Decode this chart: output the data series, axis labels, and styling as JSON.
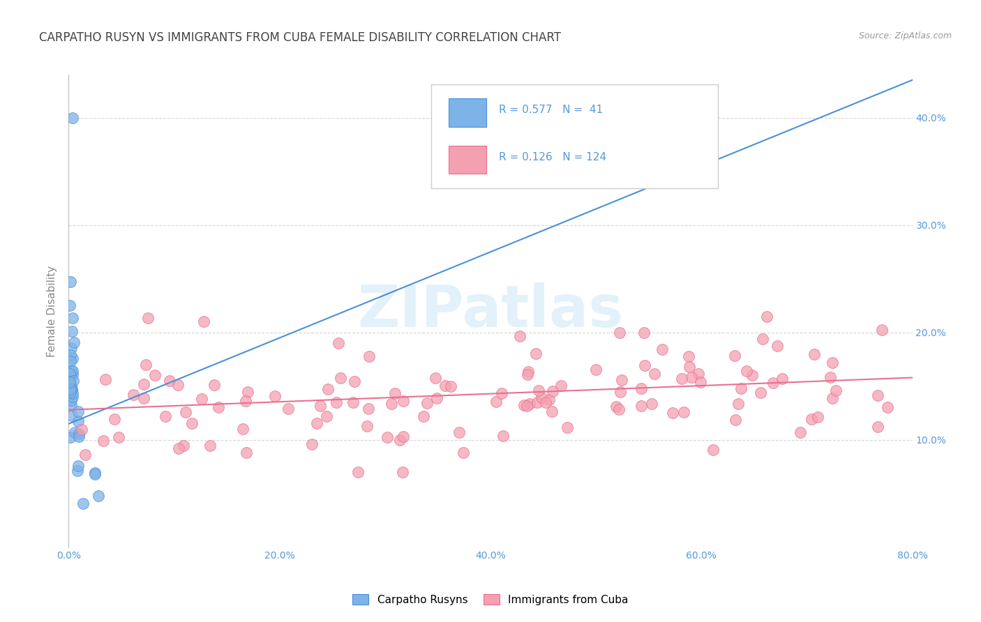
{
  "title": "CARPATHO RUSYN VS IMMIGRANTS FROM CUBA FEMALE DISABILITY CORRELATION CHART",
  "source": "Source: ZipAtlas.com",
  "ylabel": "Female Disability",
  "color_rusyn": "#7EB3E8",
  "color_cuba": "#F4A0B0",
  "line_color_rusyn": "#4A90D9",
  "line_color_cuba": "#E87090",
  "R_rusyn": 0.577,
  "N_rusyn": 41,
  "R_cuba": 0.126,
  "N_cuba": 124,
  "legend_label_rusyn": "Carpatho Rusyns",
  "legend_label_cuba": "Immigrants from Cuba",
  "background_color": "#FFFFFF",
  "grid_color": "#CCCCCC",
  "title_color": "#444444",
  "axis_label_color": "#888888",
  "tick_label_color": "#5599DD",
  "watermark_color": "#D0E8F8",
  "xlim": [
    0.0,
    0.8
  ],
  "ylim": [
    0.0,
    0.44
  ],
  "blue_line_x0": 0.0,
  "blue_line_y0": 0.115,
  "blue_line_x1": 0.8,
  "blue_line_y1": 0.435,
  "pink_line_x0": 0.0,
  "pink_line_y0": 0.128,
  "pink_line_x1": 0.8,
  "pink_line_y1": 0.158
}
